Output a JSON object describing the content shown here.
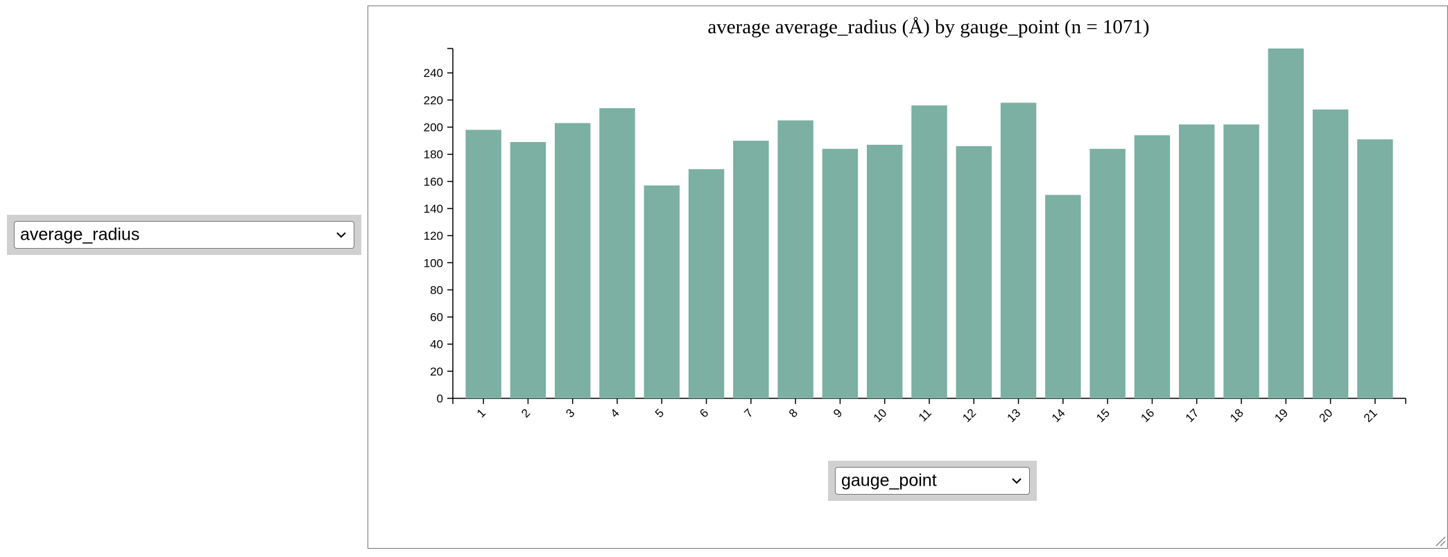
{
  "controls": {
    "y_variable": {
      "selected": "average_radius"
    },
    "x_variable": {
      "selected": "gauge_point"
    }
  },
  "colors": {
    "bar": "#7bb0a2",
    "axis": "#000000"
  },
  "chart_data": {
    "type": "bar",
    "title": "average average_radius (Å) by gauge_point (n = 1071)",
    "xlabel": "",
    "ylabel": "",
    "categories": [
      "1",
      "2",
      "3",
      "4",
      "5",
      "6",
      "7",
      "8",
      "9",
      "10",
      "11",
      "12",
      "13",
      "14",
      "15",
      "16",
      "17",
      "18",
      "19",
      "20",
      "21"
    ],
    "values": [
      198,
      189,
      203,
      214,
      157,
      169,
      190,
      205,
      184,
      187,
      216,
      186,
      218,
      150,
      184,
      194,
      202,
      202,
      258,
      213,
      191
    ],
    "y_ticks": [
      0,
      20,
      40,
      60,
      80,
      100,
      120,
      140,
      160,
      180,
      200,
      220,
      240
    ],
    "ylim": [
      0,
      258
    ],
    "grid": false,
    "legend": "none"
  }
}
